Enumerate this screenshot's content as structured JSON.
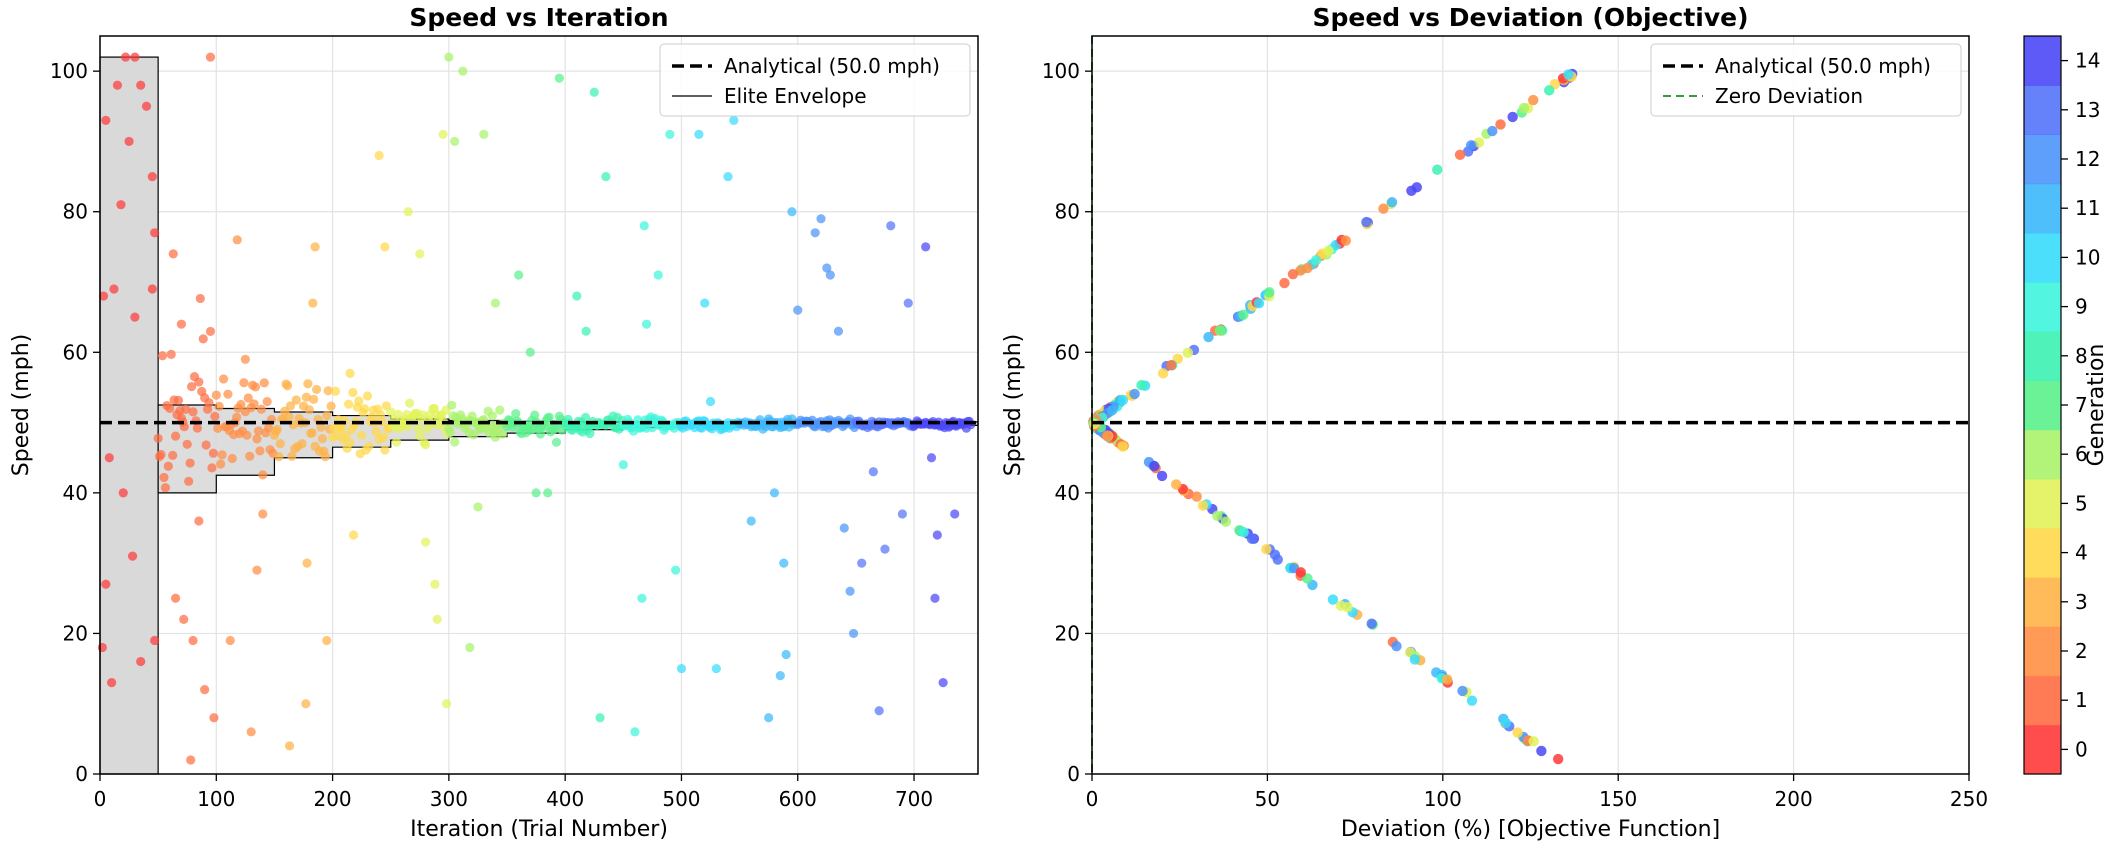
{
  "chart_data": [
    {
      "type": "scatter",
      "title": "Speed vs Iteration",
      "xlabel": "Iteration (Trial Number)",
      "ylabel": "Speed (mph)",
      "xlim": [
        0,
        755
      ],
      "ylim": [
        0,
        105
      ],
      "xticks": [
        0,
        100,
        200,
        300,
        400,
        500,
        600,
        700
      ],
      "yticks": [
        0,
        20,
        40,
        60,
        80,
        100
      ],
      "grid": true,
      "legend_position": "top-right",
      "legend": [
        "Analytical (50.0 mph)",
        "Elite Envelope"
      ],
      "reference_line": {
        "label": "Analytical (50.0 mph)",
        "y": 50.0
      },
      "elite_envelope": {
        "label": "Elite Envelope",
        "first_block": {
          "x0": 0,
          "x1": 50,
          "lower": 0,
          "upper": 102
        },
        "steps": [
          {
            "x0": 50,
            "x1": 100,
            "lower": 40,
            "upper": 52.5
          },
          {
            "x0": 100,
            "x1": 150,
            "lower": 42.5,
            "upper": 52
          },
          {
            "x0": 150,
            "x1": 200,
            "lower": 45,
            "upper": 51.5
          },
          {
            "x0": 200,
            "x1": 250,
            "lower": 46.5,
            "upper": 51
          },
          {
            "x0": 250,
            "x1": 300,
            "lower": 47.5,
            "upper": 50.5
          },
          {
            "x0": 300,
            "x1": 350,
            "lower": 48,
            "upper": 50.3
          },
          {
            "x0": 350,
            "x1": 400,
            "lower": 48.5,
            "upper": 50.2
          },
          {
            "x0": 400,
            "x1": 450,
            "lower": 49,
            "upper": 50.1
          },
          {
            "x0": 450,
            "x1": 500,
            "lower": 49.3,
            "upper": 50.1
          },
          {
            "x0": 500,
            "x1": 755,
            "lower": 49.6,
            "upper": 50.1
          }
        ]
      },
      "points_per_generation": 50,
      "sampled_outliers": [
        [
          5,
          93
        ],
        [
          15,
          98
        ],
        [
          22,
          102
        ],
        [
          30,
          102
        ],
        [
          35,
          98
        ],
        [
          18,
          81
        ],
        [
          25,
          90
        ],
        [
          40,
          95
        ],
        [
          45,
          85
        ],
        [
          3,
          68
        ],
        [
          12,
          69
        ],
        [
          30,
          65
        ],
        [
          47,
          77
        ],
        [
          45,
          69
        ],
        [
          8,
          45
        ],
        [
          20,
          40
        ],
        [
          28,
          31
        ],
        [
          35,
          16
        ],
        [
          10,
          13
        ],
        [
          5,
          27
        ],
        [
          47,
          19
        ],
        [
          2,
          18
        ],
        [
          63,
          74
        ],
        [
          70,
          64
        ],
        [
          65,
          25
        ],
        [
          72,
          22
        ],
        [
          80,
          19
        ],
        [
          90,
          12
        ],
        [
          95,
          102
        ],
        [
          78,
          2
        ],
        [
          85,
          36
        ],
        [
          98,
          8
        ],
        [
          118,
          76
        ],
        [
          125,
          59
        ],
        [
          130,
          6
        ],
        [
          135,
          29
        ],
        [
          112,
          19
        ],
        [
          140,
          37
        ],
        [
          163,
          4
        ],
        [
          178,
          30
        ],
        [
          183,
          67
        ],
        [
          185,
          75
        ],
        [
          177,
          10
        ],
        [
          195,
          19
        ],
        [
          215,
          57
        ],
        [
          218,
          34
        ],
        [
          240,
          88
        ],
        [
          245,
          75
        ],
        [
          265,
          80
        ],
        [
          275,
          74
        ],
        [
          280,
          33
        ],
        [
          288,
          27
        ],
        [
          290,
          22
        ],
        [
          295,
          91
        ],
        [
          298,
          10
        ],
        [
          300,
          102
        ],
        [
          305,
          90
        ],
        [
          312,
          100
        ],
        [
          318,
          18
        ],
        [
          325,
          38
        ],
        [
          330,
          91
        ],
        [
          340,
          67
        ],
        [
          360,
          71
        ],
        [
          370,
          60
        ],
        [
          375,
          40
        ],
        [
          385,
          40
        ],
        [
          395,
          99
        ],
        [
          410,
          68
        ],
        [
          418,
          63
        ],
        [
          425,
          97
        ],
        [
          435,
          85
        ],
        [
          430,
          8
        ],
        [
          450,
          44
        ],
        [
          460,
          6
        ],
        [
          468,
          78
        ],
        [
          470,
          64
        ],
        [
          466,
          25
        ],
        [
          480,
          71
        ],
        [
          490,
          91
        ],
        [
          495,
          29
        ],
        [
          500,
          15
        ],
        [
          515,
          91
        ],
        [
          520,
          67
        ],
        [
          525,
          53
        ],
        [
          530,
          15
        ],
        [
          540,
          85
        ],
        [
          545,
          93
        ],
        [
          560,
          36
        ],
        [
          575,
          8
        ],
        [
          580,
          40
        ],
        [
          585,
          14
        ],
        [
          588,
          30
        ],
        [
          590,
          17
        ],
        [
          595,
          80
        ],
        [
          600,
          66
        ],
        [
          615,
          77
        ],
        [
          620,
          79
        ],
        [
          625,
          72
        ],
        [
          628,
          71
        ],
        [
          635,
          63
        ],
        [
          640,
          35
        ],
        [
          645,
          26
        ],
        [
          648,
          20
        ],
        [
          655,
          30
        ],
        [
          665,
          43
        ],
        [
          670,
          9
        ],
        [
          675,
          32
        ],
        [
          680,
          78
        ],
        [
          690,
          37
        ],
        [
          695,
          67
        ],
        [
          710,
          75
        ],
        [
          715,
          45
        ],
        [
          718,
          25
        ],
        [
          720,
          34
        ],
        [
          725,
          13
        ],
        [
          735,
          37
        ]
      ]
    },
    {
      "type": "scatter",
      "title": "Speed vs Deviation (Objective)",
      "xlabel": "Deviation (%) [Objective Function]",
      "ylabel": "Speed (mph)",
      "xlim": [
        0,
        250
      ],
      "ylim": [
        0,
        105
      ],
      "xticks": [
        0,
        50,
        100,
        150,
        200,
        250
      ],
      "yticks": [
        0,
        20,
        40,
        60,
        80,
        100
      ],
      "grid": true,
      "legend_position": "top-right",
      "legend": [
        "Analytical (50.0 mph)",
        "Zero Deviation"
      ],
      "reference_line": {
        "label": "Analytical (50.0 mph)",
        "y": 50.0
      },
      "zero_line": {
        "label": "Zero Deviation",
        "x": 0
      },
      "relationship": "deviation = |speed - 50| / 50 * 100 × ~1.4"
    }
  ],
  "colorbar": {
    "label": "Generation",
    "ticks": [
      0,
      1,
      2,
      3,
      4,
      5,
      6,
      7,
      8,
      9,
      10,
      11,
      12,
      13,
      14
    ],
    "colors": [
      "#ff3a3a",
      "#ff6d42",
      "#ff8f45",
      "#ffb247",
      "#ffd84a",
      "#e2f25a",
      "#a8f36a",
      "#5bf18c",
      "#3cf2b2",
      "#3ff5dd",
      "#38dcfb",
      "#3cb8fb",
      "#4c95fb",
      "#5474fb",
      "#4b48f6"
    ]
  }
}
